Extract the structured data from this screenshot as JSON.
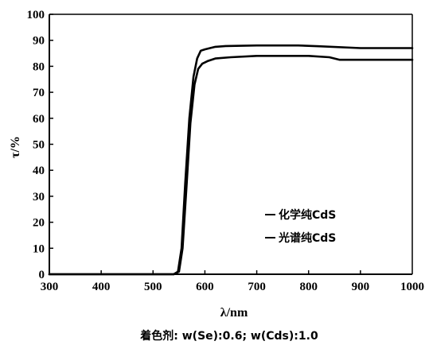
{
  "chart_data": {
    "type": "line",
    "title": "",
    "xlabel": "λ/nm",
    "ylabel": "τ/%",
    "xlim": [
      300,
      1000
    ],
    "ylim": [
      0,
      100
    ],
    "xticks": [
      300,
      400,
      500,
      600,
      700,
      800,
      900,
      1000
    ],
    "yticks": [
      0,
      10,
      20,
      30,
      40,
      50,
      60,
      70,
      80,
      90,
      100
    ],
    "grid": false,
    "legend_position": "center-right",
    "caption": "着色剂:  w(Se):0.6; w(Cds):1.0",
    "series": [
      {
        "name": "化学纯CdS",
        "x": [
          300,
          500,
          540,
          548,
          555,
          562,
          570,
          578,
          585,
          592,
          600,
          610,
          620,
          640,
          700,
          780,
          820,
          900,
          1000
        ],
        "y": [
          0,
          0,
          0,
          1,
          10,
          35,
          60,
          76,
          83,
          86,
          86.5,
          87,
          87.5,
          87.8,
          88,
          88,
          87.7,
          87,
          87
        ]
      },
      {
        "name": "光谱纯CdS",
        "x": [
          300,
          500,
          540,
          550,
          557,
          565,
          572,
          580,
          587,
          595,
          605,
          620,
          650,
          700,
          800,
          840,
          860,
          900,
          1000
        ],
        "y": [
          0,
          0,
          0,
          1,
          10,
          35,
          58,
          73,
          79,
          81,
          82,
          83,
          83.5,
          84,
          84,
          83.5,
          82.5,
          82.5,
          82.5
        ]
      }
    ]
  }
}
